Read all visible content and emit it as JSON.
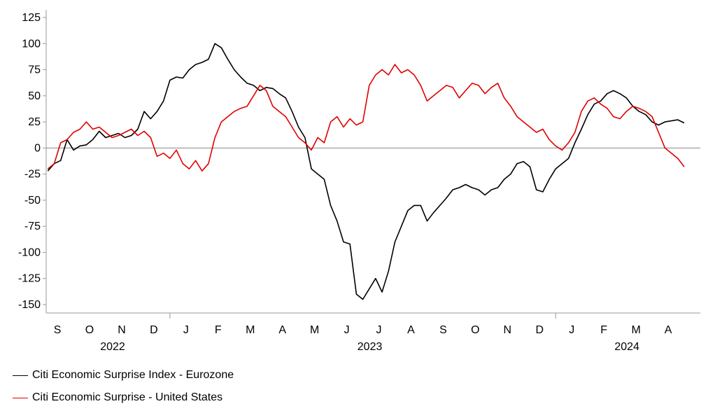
{
  "chart_data": {
    "type": "line",
    "title": "",
    "xlabel": "",
    "ylabel": "",
    "ylim": [
      -155,
      135
    ],
    "yticks": [
      125,
      100,
      75,
      50,
      25,
      0,
      -25,
      -50,
      -75,
      -100,
      -125,
      -150
    ],
    "x_months": [
      "S",
      "O",
      "N",
      "D",
      "J",
      "F",
      "M",
      "A",
      "M",
      "J",
      "J",
      "A",
      "S",
      "O",
      "N",
      "D",
      "J",
      "F",
      "M",
      "A"
    ],
    "x_years": [
      {
        "label": "2022",
        "month_index": 1.5
      },
      {
        "label": "2023",
        "month_index": 9.5
      },
      {
        "label": "2024",
        "month_index": 17.5
      }
    ],
    "year_dividers": [
      3.5,
      15.5
    ],
    "series": [
      {
        "name": "Citi Economic Surprise Index - Eurozone",
        "color": "#000000",
        "x": [
          -0.3,
          -0.1,
          0.1,
          0.3,
          0.5,
          0.7,
          0.9,
          1.1,
          1.3,
          1.5,
          1.7,
          1.9,
          2.1,
          2.3,
          2.5,
          2.7,
          2.9,
          3.1,
          3.3,
          3.5,
          3.7,
          3.9,
          4.1,
          4.3,
          4.5,
          4.7,
          4.9,
          5.1,
          5.3,
          5.5,
          5.7,
          5.9,
          6.1,
          6.3,
          6.5,
          6.7,
          6.9,
          7.1,
          7.3,
          7.5,
          7.7,
          7.9,
          8.1,
          8.3,
          8.5,
          8.7,
          8.9,
          9.1,
          9.3,
          9.5,
          9.7,
          9.9,
          10.1,
          10.3,
          10.5,
          10.7,
          10.9,
          11.1,
          11.3,
          11.5,
          11.7,
          11.9,
          12.1,
          12.3,
          12.5,
          12.7,
          12.9,
          13.1,
          13.3,
          13.5,
          13.7,
          13.9,
          14.1,
          14.3,
          14.5,
          14.7,
          14.9,
          15.1,
          15.3,
          15.5,
          15.7,
          15.9,
          16.1,
          16.3,
          16.5,
          16.7,
          16.9,
          17.1,
          17.3,
          17.5,
          17.7,
          17.9,
          18.1,
          18.3,
          18.5,
          18.7,
          18.9,
          19.1,
          19.3,
          19.5
        ],
        "values": [
          -22,
          -15,
          -12,
          8,
          -2,
          2,
          3,
          8,
          16,
          10,
          12,
          14,
          10,
          12,
          18,
          35,
          28,
          35,
          45,
          65,
          68,
          67,
          75,
          80,
          82,
          85,
          100,
          96,
          85,
          75,
          68,
          62,
          60,
          55,
          58,
          57,
          52,
          48,
          35,
          20,
          10,
          -20,
          -25,
          -30,
          -55,
          -70,
          -90,
          -92,
          -140,
          -145,
          -135,
          -125,
          -138,
          -118,
          -90,
          -75,
          -60,
          -55,
          -55,
          -70,
          -62,
          -55,
          -48,
          -40,
          -38,
          -35,
          -38,
          -40,
          -45,
          -40,
          -38,
          -30,
          -25,
          -15,
          -13,
          -18,
          -40,
          -42,
          -30,
          -20,
          -15,
          -10,
          5,
          18,
          32,
          42,
          45,
          52,
          55,
          52,
          48,
          40,
          35,
          32,
          25,
          22,
          25,
          26,
          27,
          24
        ]
      },
      {
        "name": "Citi Economic Surprise - United States",
        "color": "#e00000",
        "x": [
          -0.3,
          -0.1,
          0.1,
          0.3,
          0.5,
          0.7,
          0.9,
          1.1,
          1.3,
          1.5,
          1.7,
          1.9,
          2.1,
          2.3,
          2.5,
          2.7,
          2.9,
          3.1,
          3.3,
          3.5,
          3.7,
          3.9,
          4.1,
          4.3,
          4.5,
          4.7,
          4.9,
          5.1,
          5.3,
          5.5,
          5.7,
          5.9,
          6.1,
          6.3,
          6.5,
          6.7,
          6.9,
          7.1,
          7.3,
          7.5,
          7.7,
          7.9,
          8.1,
          8.3,
          8.5,
          8.7,
          8.9,
          9.1,
          9.3,
          9.5,
          9.7,
          9.9,
          10.1,
          10.3,
          10.5,
          10.7,
          10.9,
          11.1,
          11.3,
          11.5,
          11.7,
          11.9,
          12.1,
          12.3,
          12.5,
          12.7,
          12.9,
          13.1,
          13.3,
          13.5,
          13.7,
          13.9,
          14.1,
          14.3,
          14.5,
          14.7,
          14.9,
          15.1,
          15.3,
          15.5,
          15.7,
          15.9,
          16.1,
          16.3,
          16.5,
          16.7,
          16.9,
          17.1,
          17.3,
          17.5,
          17.7,
          17.9,
          18.1,
          18.3,
          18.5,
          18.7,
          18.9,
          19.1,
          19.3,
          19.5
        ],
        "values": [
          -20,
          -15,
          5,
          8,
          15,
          18,
          25,
          18,
          20,
          15,
          10,
          12,
          15,
          18,
          12,
          16,
          10,
          -8,
          -5,
          -10,
          -2,
          -15,
          -20,
          -12,
          -22,
          -15,
          10,
          25,
          30,
          35,
          38,
          40,
          50,
          60,
          55,
          40,
          35,
          30,
          20,
          10,
          5,
          -2,
          10,
          5,
          25,
          30,
          20,
          28,
          22,
          25,
          60,
          70,
          75,
          70,
          80,
          72,
          75,
          70,
          60,
          45,
          50,
          55,
          60,
          58,
          48,
          55,
          62,
          60,
          52,
          58,
          62,
          48,
          40,
          30,
          25,
          20,
          15,
          18,
          8,
          2,
          -2,
          5,
          15,
          35,
          45,
          48,
          42,
          38,
          30,
          28,
          35,
          40,
          38,
          35,
          30,
          15,
          0,
          -5,
          -10,
          -18
        ]
      }
    ]
  },
  "legend": {
    "items": [
      {
        "label": "Citi Economic Surprise Index - Eurozone",
        "color": "#000000"
      },
      {
        "label": "Citi Economic Surprise - United States",
        "color": "#e00000"
      }
    ]
  }
}
